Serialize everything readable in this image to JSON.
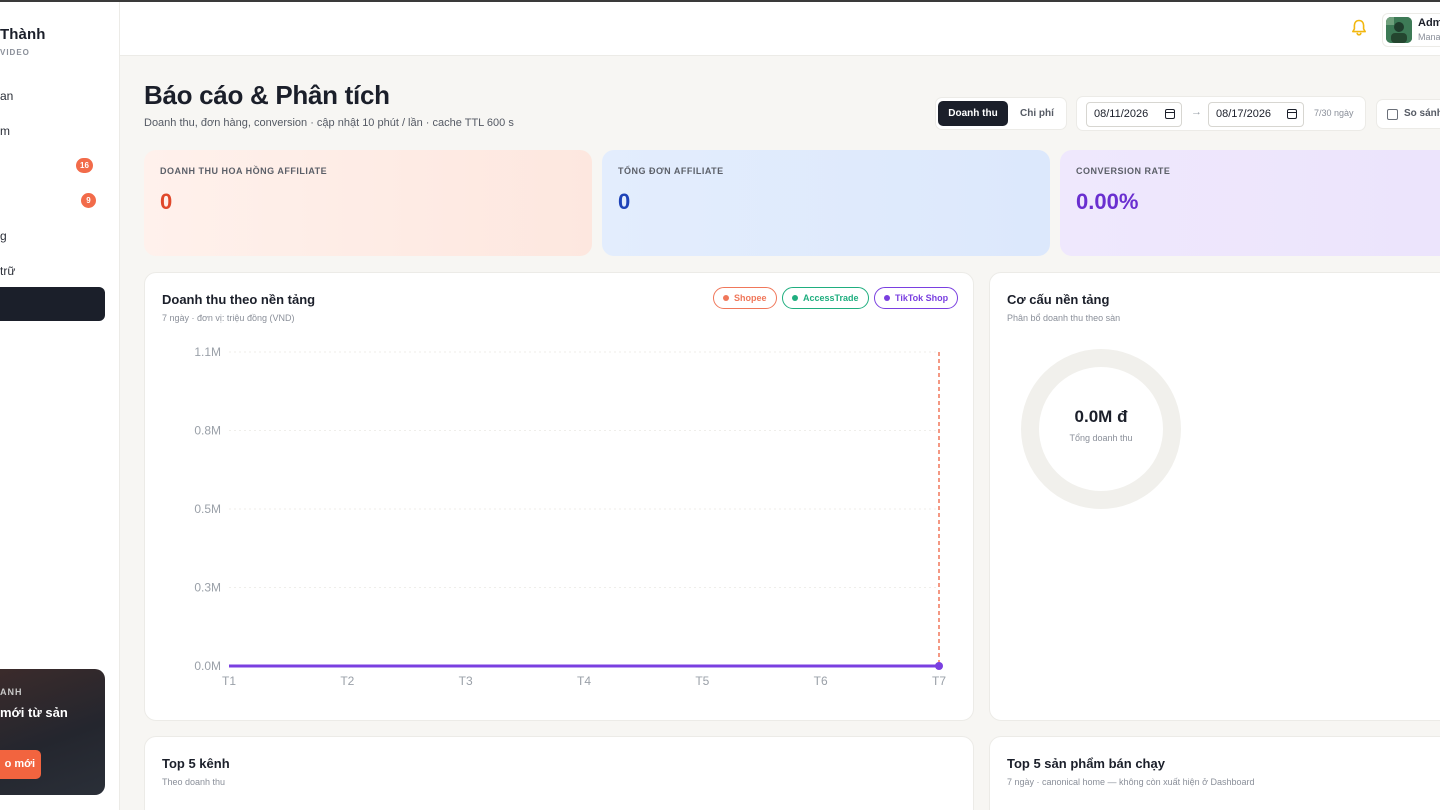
{
  "sidebar": {
    "brand_name": "Thành",
    "brand_sub": "VIDEO",
    "items": [
      {
        "label": "an"
      },
      {
        "label": "m"
      },
      {
        "label": "",
        "badge": "16"
      },
      {
        "label": "",
        "badge": "9"
      },
      {
        "label": "g"
      },
      {
        "label": "trữ"
      }
    ],
    "promo": {
      "tag": "ANH",
      "title": "mới từ sản",
      "button": "o mới"
    }
  },
  "header": {
    "user_name": "Adm",
    "user_role": "Mana"
  },
  "page": {
    "title": "Báo cáo & Phân tích",
    "subtitle": "Doanh thu, đơn hàng, conversion · cập nhật 10 phút / lần · cache TTL 600 s",
    "toggle": {
      "active": "Doanh thu",
      "inactive": "Chi phí"
    },
    "date_from": "08/11/2026",
    "date_to": "08/17/2026",
    "date_arrow": "→",
    "range_note": "7/30 ngày",
    "compare_label": "So sánh"
  },
  "kpis": [
    {
      "label": "DOANH THU HOA HỒNG AFFILIATE",
      "value": "0",
      "color": "#e0482b"
    },
    {
      "label": "TỔNG ĐƠN AFFILIATE",
      "value": "0",
      "color": "#1e43b8"
    },
    {
      "label": "CONVERSION RATE",
      "value": "0.00%",
      "color": "#6a2fd0"
    }
  ],
  "revenue_panel": {
    "title": "Doanh thu theo nền tảng",
    "subtitle": "7 ngày · đơn vị: triệu đồng (VND)",
    "legend": [
      {
        "name": "Shopee",
        "color": "#f0775a"
      },
      {
        "name": "AccessTrade",
        "color": "#1fae7f"
      },
      {
        "name": "TikTok Shop",
        "color": "#7a3fe0"
      }
    ]
  },
  "chart_data": {
    "type": "line",
    "x": [
      "T1",
      "T2",
      "T3",
      "T4",
      "T5",
      "T6",
      "T7"
    ],
    "yticks": [
      "1.1M",
      "0.8M",
      "0.5M",
      "0.3M",
      "0.0M"
    ],
    "ylim": [
      0,
      1.1
    ],
    "series": [
      {
        "name": "Shopee",
        "values": [
          0,
          0,
          0,
          0,
          0,
          0,
          0
        ]
      },
      {
        "name": "AccessTrade",
        "values": [
          0,
          0,
          0,
          0,
          0,
          0,
          0
        ]
      },
      {
        "name": "TikTok Shop",
        "values": [
          0,
          0,
          0,
          0,
          0,
          0,
          0
        ]
      }
    ],
    "hover_index": 6,
    "grid": true
  },
  "donut_panel": {
    "title": "Cơ cấu nền tảng",
    "subtitle": "Phân bổ doanh thu theo sàn",
    "center_value": "0.0M đ",
    "center_label": "Tổng doanh thu"
  },
  "top_channels": {
    "title": "Top 5 kênh",
    "subtitle": "Theo doanh thu"
  },
  "top_products": {
    "title": "Top 5 sản phẩm bán chạy",
    "subtitle": "7 ngày · canonical home — không còn xuất hiện ở Dashboard"
  }
}
